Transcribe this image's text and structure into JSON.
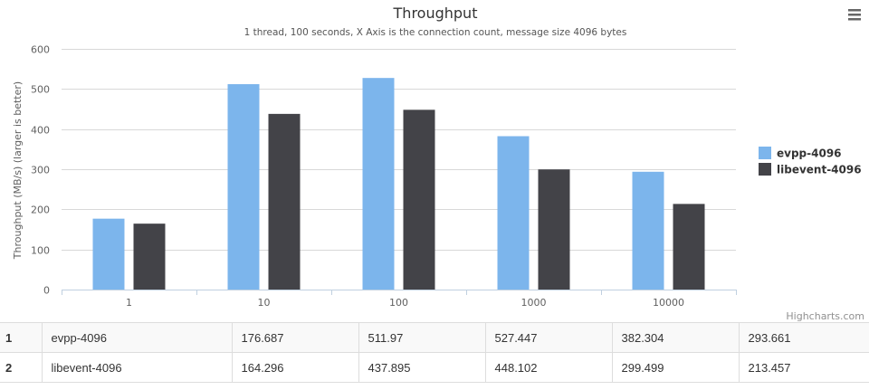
{
  "chart_data": {
    "type": "bar",
    "title": "Throughput",
    "subtitle": "1 thread, 100 seconds, X Axis is the connection count, message size 4096 bytes",
    "xlabel": "",
    "ylabel": "Throughput (MB/s) (larger is better)",
    "categories": [
      "1",
      "10",
      "100",
      "1000",
      "10000"
    ],
    "ylim": [
      0,
      600
    ],
    "yticks": [
      0,
      100,
      200,
      300,
      400,
      500,
      600
    ],
    "grid": true,
    "legend_position": "right",
    "series": [
      {
        "name": "evpp-4096",
        "color": "#7cb5ec",
        "values": [
          176.687,
          511.97,
          527.447,
          382.304,
          293.661
        ]
      },
      {
        "name": "libevent-4096",
        "color": "#434348",
        "values": [
          164.296,
          437.895,
          448.102,
          299.499,
          213.457
        ]
      }
    ]
  },
  "credits": "Highcharts.com",
  "menu_icon": "hamburger-menu-icon",
  "table": {
    "rows": [
      {
        "index": "1",
        "name": "evpp-4096",
        "values": [
          "176.687",
          "511.97",
          "527.447",
          "382.304",
          "293.661"
        ]
      },
      {
        "index": "2",
        "name": "libevent-4096",
        "values": [
          "164.296",
          "437.895",
          "448.102",
          "299.499",
          "213.457"
        ]
      }
    ]
  }
}
